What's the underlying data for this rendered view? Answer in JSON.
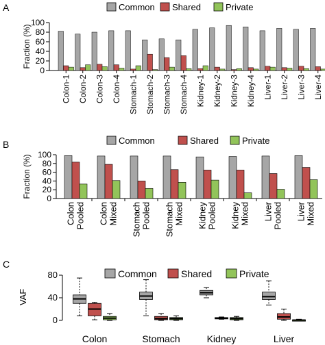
{
  "colors": {
    "common": "#a6a6a6",
    "shared": "#c0504d",
    "private": "#92c45a",
    "median": "#000000"
  },
  "chart_data": [
    {
      "panel_label": "A",
      "type": "bar",
      "ylabel": "Fraction (%)",
      "ylim": [
        0,
        100
      ],
      "yticks": [
        0,
        20,
        40,
        60,
        80,
        100
      ],
      "legend_placement": "top",
      "categories": [
        "Colon-1",
        "Colon-2",
        "Colon-3",
        "Colon-4",
        "Stomach-1",
        "Stomach-2",
        "Stomach-3",
        "Stomach-4",
        "Kidney-1",
        "Kidney-2",
        "Kidney-3",
        "Kidney-4",
        "Liver-1",
        "Liver-2",
        "Liver-3",
        "Liver-4"
      ],
      "series": [
        {
          "name": "Common",
          "values": [
            82,
            76,
            80,
            83,
            83,
            64,
            66,
            64,
            86,
            89,
            94,
            91,
            83,
            88,
            86,
            88
          ]
        },
        {
          "name": "Shared",
          "values": [
            10,
            6,
            13,
            12,
            3,
            34,
            27,
            31,
            4,
            7,
            2,
            6,
            9,
            6,
            9,
            8
          ]
        },
        {
          "name": "Private",
          "values": [
            7,
            12,
            8,
            5,
            10,
            2,
            7,
            4,
            10,
            3,
            4,
            3,
            7,
            5,
            4,
            3
          ]
        }
      ]
    },
    {
      "panel_label": "B",
      "type": "bar",
      "ylabel": "Fraction (%)",
      "ylim": [
        0,
        100
      ],
      "yticks": [
        0,
        20,
        40,
        60,
        80,
        100
      ],
      "legend_placement": "top",
      "categories": [
        [
          "Colon",
          "Pooled"
        ],
        [
          "Colon",
          "Mixed"
        ],
        [
          "Stomach",
          "Pooled"
        ],
        [
          "Stomach",
          "Mixed"
        ],
        [
          "Kidney",
          "Pooled"
        ],
        [
          "Kidney",
          "Mixed"
        ],
        [
          "Liver",
          "Pooled"
        ],
        [
          "Liver",
          "Mixed"
        ]
      ],
      "series": [
        {
          "name": "Common",
          "values": [
            98,
            97,
            97,
            97,
            95,
            96,
            97,
            98
          ]
        },
        {
          "name": "Shared",
          "values": [
            83,
            78,
            40,
            66,
            65,
            65,
            57,
            71
          ]
        },
        {
          "name": "Private",
          "values": [
            33,
            41,
            23,
            37,
            42,
            13,
            21,
            43
          ]
        }
      ]
    },
    {
      "panel_label": "C",
      "type": "box",
      "ylabel": "VAF",
      "ylim": [
        0,
        80
      ],
      "yticks": [
        0,
        40,
        80
      ],
      "legend_placement": "top",
      "categories": [
        "Colon",
        "Stomach",
        "Kidney",
        "Liver"
      ],
      "series": [
        {
          "name": "Common",
          "boxes": [
            {
              "min": 8,
              "q1": 30,
              "median": 38,
              "q3": 45,
              "max": 75
            },
            {
              "min": 8,
              "q1": 37,
              "median": 43,
              "q3": 50,
              "max": 72
            },
            {
              "min": 40,
              "q1": 45,
              "median": 49,
              "q3": 53,
              "max": 58
            },
            {
              "min": 27,
              "q1": 37,
              "median": 42,
              "q3": 50,
              "max": 70
            }
          ]
        },
        {
          "name": "Shared",
          "boxes": [
            {
              "min": 1,
              "q1": 8,
              "median": 20,
              "q3": 30,
              "max": 32
            },
            {
              "min": 0,
              "q1": 1,
              "median": 3,
              "q3": 7,
              "max": 12
            },
            {
              "min": 2,
              "q1": 3,
              "median": 4,
              "q3": 5,
              "max": 6
            },
            {
              "min": 0,
              "q1": 2,
              "median": 6,
              "q3": 12,
              "max": 20
            }
          ]
        },
        {
          "name": "Private",
          "boxes": [
            {
              "min": 0,
              "q1": 1,
              "median": 4,
              "q3": 7,
              "max": 12
            },
            {
              "min": 0,
              "q1": 1,
              "median": 3,
              "q3": 5,
              "max": 8
            },
            {
              "min": 0,
              "q1": 1,
              "median": 3,
              "q3": 5,
              "max": 7
            },
            {
              "min": 0,
              "q1": 0,
              "median": 0.5,
              "q3": 1,
              "max": 2
            }
          ]
        }
      ]
    }
  ]
}
